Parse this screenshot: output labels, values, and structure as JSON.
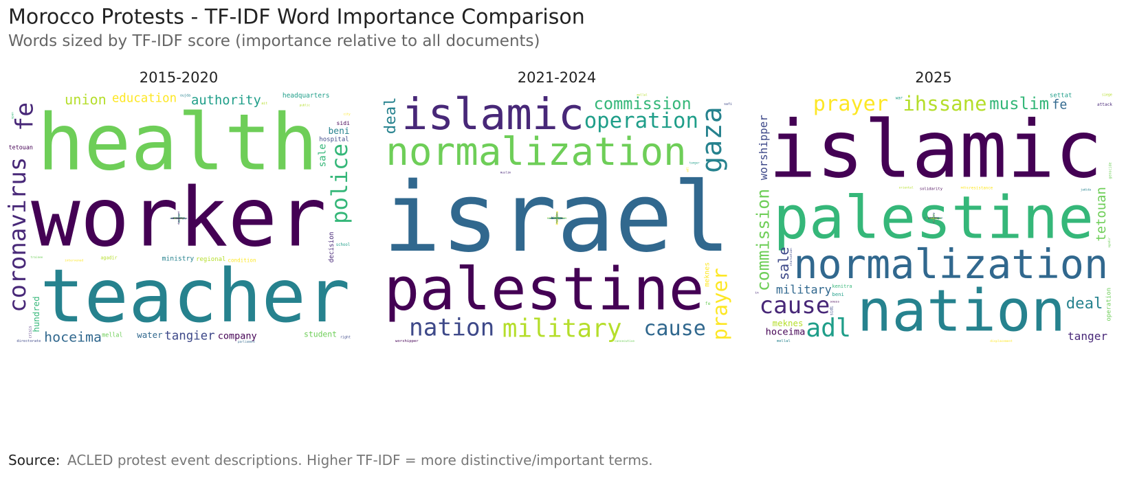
{
  "title": "Morocco Protests - TF-IDF Word Importance Comparison",
  "subtitle": "Words sized by TF-IDF score (importance relative to all documents)",
  "source_label": "Source:",
  "source_text": "ACLED protest event descriptions. Higher TF-IDF = more distinctive/important terms.",
  "chart_data": [
    {
      "type": "wordcloud",
      "title": "2015-2020",
      "words": [
        "worker",
        "health",
        "teacher",
        "coronavirus",
        "union",
        "authority",
        "tangier",
        "education",
        "police",
        "hoceima",
        "company",
        "student",
        "ministry",
        "fe",
        "regional",
        "headquarters",
        "hospital",
        "condition",
        "hundred",
        "water",
        "tetouan",
        "mellal",
        "beni",
        "decision",
        "agadir",
        "school",
        "directorate",
        "intervened",
        "sale",
        "parliament",
        "sidi",
        "trainee",
        "oujda",
        "crisis",
        "public",
        "khenifra",
        "right",
        "city",
        "meknes",
        "settat",
        "democratic",
        "human",
        "social",
        "driver",
        "nador",
        "family",
        "working",
        "region",
        "open",
        "taxi",
        "nurse",
        "thousand",
        "outbreak",
        "dispersed",
        "ait",
        "association",
        "labour",
        "sector",
        "israel",
        "safi",
        "solidarity"
      ],
      "values": [
        1.0,
        0.95,
        0.9,
        0.55,
        0.45,
        0.42,
        0.33,
        0.33,
        0.32,
        0.32,
        0.3,
        0.3,
        0.3,
        0.25,
        0.2,
        0.18,
        0.17,
        0.17,
        0.17,
        0.17,
        0.16,
        0.16,
        0.15,
        0.15,
        0.15,
        0.15,
        0.14,
        0.14,
        0.14,
        0.13,
        0.13,
        0.13,
        0.13,
        0.13,
        0.13,
        0.13,
        0.13,
        0.13,
        0.12,
        0.12,
        0.12,
        0.12,
        0.12,
        0.12,
        0.12,
        0.12,
        0.12,
        0.11,
        0.11,
        0.11,
        0.11,
        0.11,
        0.11,
        0.11,
        0.11,
        0.1,
        0.1,
        0.1,
        0.1,
        0.1,
        0.1
      ]
    },
    {
      "type": "wordcloud",
      "title": "2021-2024",
      "words": [
        "israel",
        "palestine",
        "normalization",
        "gaza",
        "islamic",
        "military",
        "operation",
        "nation",
        "prayer",
        "commission",
        "cause",
        "worshipper",
        "consecutive",
        "deal",
        "muslim",
        "mellal",
        "tanger",
        "safi",
        "meknes",
        "settat",
        "tetouan",
        "sale",
        "fe",
        "hoceima",
        "massa",
        "oriental",
        "agadir",
        "beni",
        "khenifra",
        "ihssane",
        "kenitra",
        "citizen",
        "souss",
        "nador",
        "teacher",
        "normalisation",
        "sidi",
        "worker",
        "adl",
        "student",
        "education",
        "oujda",
        "health",
        "relation",
        "struggle",
        "condition",
        "coordination",
        "school",
        "price",
        "union",
        "larache",
        "social",
        "salary",
        "hassan",
        "lebanon",
        "draa",
        "berkane",
        "assilah",
        "authority",
        "jadida"
      ],
      "values": [
        1.0,
        0.85,
        0.65,
        0.55,
        0.45,
        0.42,
        0.42,
        0.4,
        0.4,
        0.38,
        0.35,
        0.28,
        0.26,
        0.26,
        0.25,
        0.25,
        0.24,
        0.24,
        0.22,
        0.22,
        0.2,
        0.2,
        0.2,
        0.19,
        0.19,
        0.19,
        0.18,
        0.18,
        0.17,
        0.17,
        0.17,
        0.17,
        0.17,
        0.17,
        0.16,
        0.16,
        0.16,
        0.15,
        0.15,
        0.14,
        0.14,
        0.12,
        0.11,
        0.11,
        0.1,
        0.1,
        0.1,
        0.1,
        0.1,
        0.1,
        0.1,
        0.1,
        0.1,
        0.1,
        0.1,
        0.1,
        0.1,
        0.1,
        0.1,
        0.09
      ]
    },
    {
      "type": "wordcloud",
      "title": "2025",
      "words": [
        "palestine",
        "normalization",
        "islamic",
        "commission",
        "nation",
        "cause",
        "ihssane",
        "adl",
        "worshipper",
        "prayer",
        "muslim",
        "military",
        "hoceima",
        "tetouan",
        "deal",
        "tanger",
        "meknes",
        "settat",
        "sale",
        "resistance",
        "kenitra",
        "fe",
        "solidarity",
        "operation",
        "mellal",
        "attack",
        "oriental",
        "beni",
        "starvation",
        "displacement",
        "rejected",
        "citizen",
        "souss",
        "genocide",
        "jadida",
        "greater",
        "siege",
        "war",
        "sidi",
        "blockade",
        "described",
        "massa",
        "policy",
        "agadir",
        "khenifra",
        "silence",
        "consecutive",
        "larache",
        "forced",
        "mdiq",
        "reaffirmed",
        "safi",
        "oujda",
        "worker",
        "arab",
        "killing",
        "khouribga",
        "berkane",
        "victory",
        "right",
        "authority",
        "international",
        "student",
        "nador",
        "tangier",
        "in",
        "hamas"
      ],
      "values": [
        0.85,
        0.8,
        0.7,
        0.65,
        0.6,
        0.55,
        0.55,
        0.5,
        0.3,
        0.3,
        0.28,
        0.23,
        0.22,
        0.22,
        0.22,
        0.22,
        0.2,
        0.2,
        0.2,
        0.18,
        0.18,
        0.18,
        0.17,
        0.17,
        0.17,
        0.16,
        0.16,
        0.16,
        0.16,
        0.14,
        0.14,
        0.14,
        0.14,
        0.13,
        0.13,
        0.13,
        0.13,
        0.13,
        0.13,
        0.13,
        0.13,
        0.13,
        0.13,
        0.13,
        0.13,
        0.13,
        0.13,
        0.12,
        0.12,
        0.12,
        0.12,
        0.12,
        0.12,
        0.12,
        0.12,
        0.12,
        0.12,
        0.12,
        0.12,
        0.12,
        0.11,
        0.11,
        0.11,
        0.11,
        0.1,
        0.1,
        0.1
      ]
    }
  ]
}
